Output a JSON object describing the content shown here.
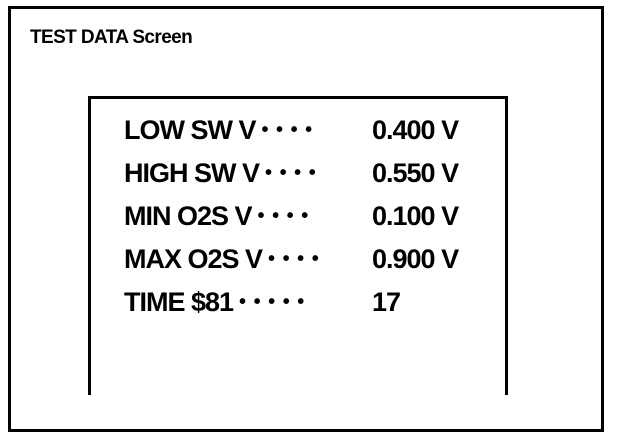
{
  "screen": {
    "title": "TEST DATA Screen",
    "rows": [
      {
        "label": "LOW SW V",
        "dots": "• • • •",
        "value": "0.400 V"
      },
      {
        "label": "HIGH SW V",
        "dots": "• • • •",
        "value": "0.550 V"
      },
      {
        "label": "MIN O2S V",
        "dots": "• • • •",
        "value": "0.100 V"
      },
      {
        "label": "MAX O2S V",
        "dots": "• • • •",
        "value": "0.900 V"
      },
      {
        "label": "TIME $81",
        "dots": "• • • • •",
        "value": "17"
      }
    ]
  }
}
